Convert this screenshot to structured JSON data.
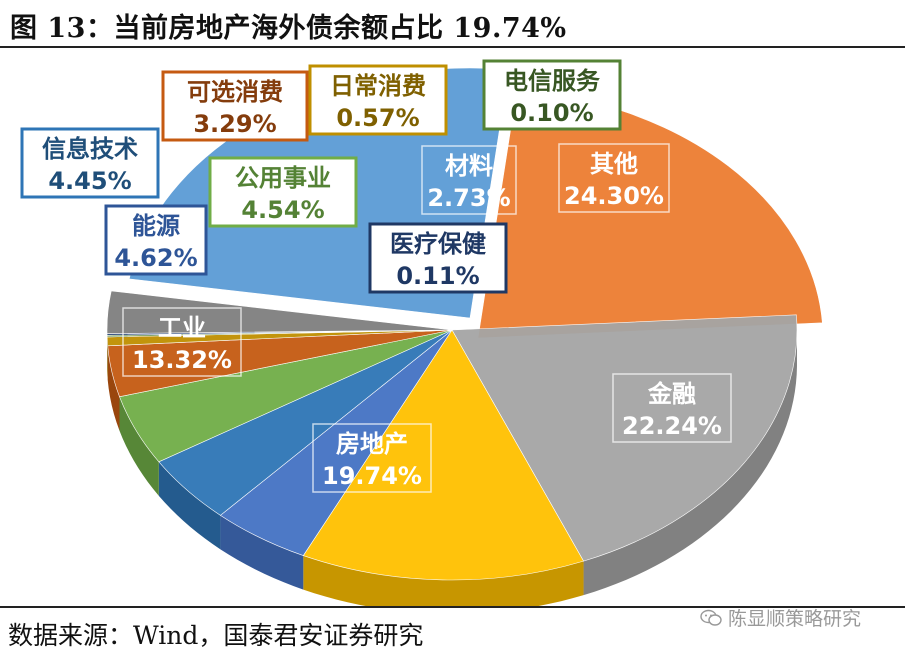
{
  "header": {
    "title": "图 13：当前房地产海外债余额占比 19.74%"
  },
  "footer": {
    "source": "数据来源：Wind，国泰君安证券研究",
    "watermark": "陈显顺策略研究"
  },
  "colors": {
    "其他": "#5B9BD5",
    "金融": "#ED7D31",
    "房地产": "#A5A5A5",
    "工业": "#FFC000",
    "能源": "#4472C4",
    "信息技术": "#2E75B6",
    "公用事业": "#70AD47",
    "可选消费": "#C55A11",
    "日常消费": "#BF8F00",
    "电信服务": "#548235",
    "材料": "#7F7F7F",
    "医疗保健": "#264478"
  },
  "chart_data": {
    "type": "pie",
    "title": "图 13：当前房地产海外债余额占比 19.74%",
    "slices": [
      {
        "label": "其他",
        "value": 24.3,
        "display": "24.30%"
      },
      {
        "label": "金融",
        "value": 22.24,
        "display": "22.24%"
      },
      {
        "label": "房地产",
        "value": 19.74,
        "display": "19.74%"
      },
      {
        "label": "工业",
        "value": 13.32,
        "display": "13.32%"
      },
      {
        "label": "能源",
        "value": 4.62,
        "display": "4.62%"
      },
      {
        "label": "信息技术",
        "value": 4.45,
        "display": "4.45%"
      },
      {
        "label": "公用事业",
        "value": 4.54,
        "display": "4.54%"
      },
      {
        "label": "可选消费",
        "value": 3.29,
        "display": "3.29%"
      },
      {
        "label": "日常消费",
        "value": 0.57,
        "display": "0.57%"
      },
      {
        "label": "电信服务",
        "value": 0.1,
        "display": "0.10%"
      },
      {
        "label": "医疗保健",
        "value": 0.11,
        "display": "0.11%"
      },
      {
        "label": "材料",
        "value": 2.73,
        "display": "2.73%"
      }
    ]
  }
}
